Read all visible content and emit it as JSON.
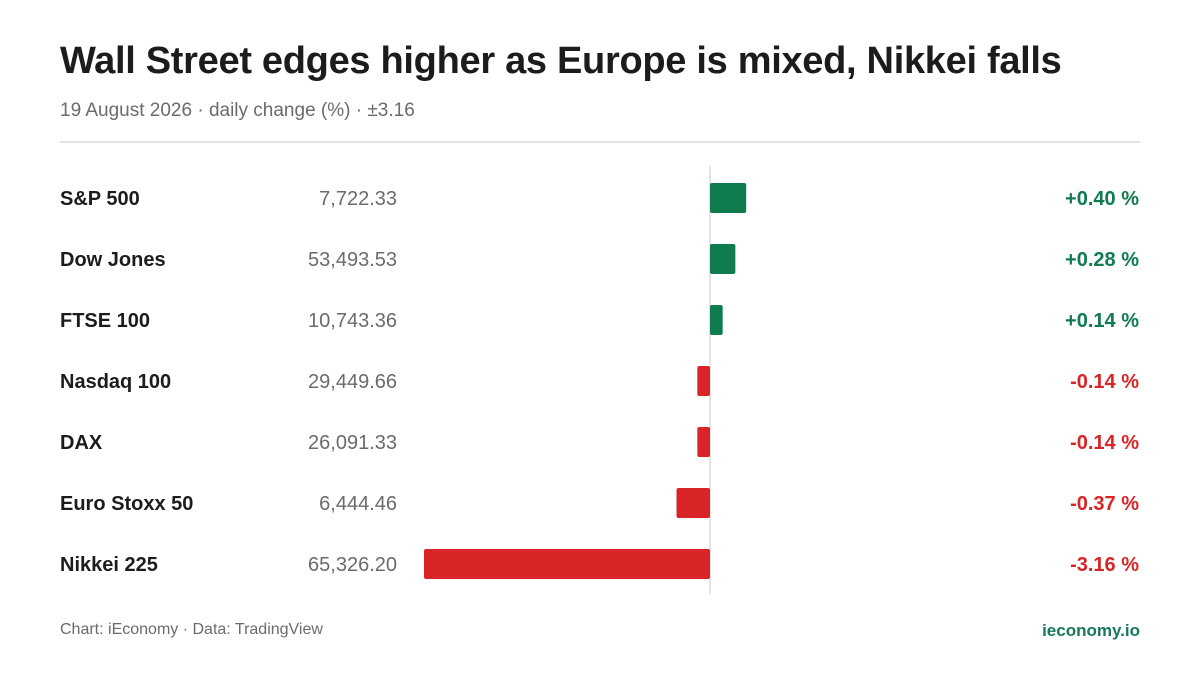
{
  "header": {
    "title": "Wall Street edges higher as Europe is mixed, Nikkei falls",
    "subtitle": "19 August 2026 · daily change (%) · ±3.16"
  },
  "footer": {
    "credit": "Chart: iEconomy · Data: TradingView",
    "brand": "ieconomy.io"
  },
  "colors": {
    "positive": "#0f7b4f",
    "negative": "#d92527",
    "axis": "#dcdcdc",
    "label": "#1c1c1c",
    "level": "#6b6b6b"
  },
  "chart_data": {
    "type": "bar",
    "orientation": "horizontal",
    "xlim": [
      -3.16,
      3.16
    ],
    "categories": [
      "S&P 500",
      "Dow Jones",
      "FTSE 100",
      "Nasdaq 100",
      "DAX",
      "Euro Stoxx 50",
      "Nikkei 225"
    ],
    "levels": [
      "7,722.33",
      "53,493.53",
      "10,743.36",
      "29,449.66",
      "26,091.33",
      "6,444.46",
      "65,326.20"
    ],
    "values": [
      0.4,
      0.28,
      0.14,
      -0.14,
      -0.14,
      -0.37,
      -3.16
    ],
    "value_labels": [
      "+0.40 %",
      "+0.28 %",
      "+0.14 %",
      "-0.14 %",
      "-0.14 %",
      "-0.37 %",
      "-3.16 %"
    ]
  }
}
